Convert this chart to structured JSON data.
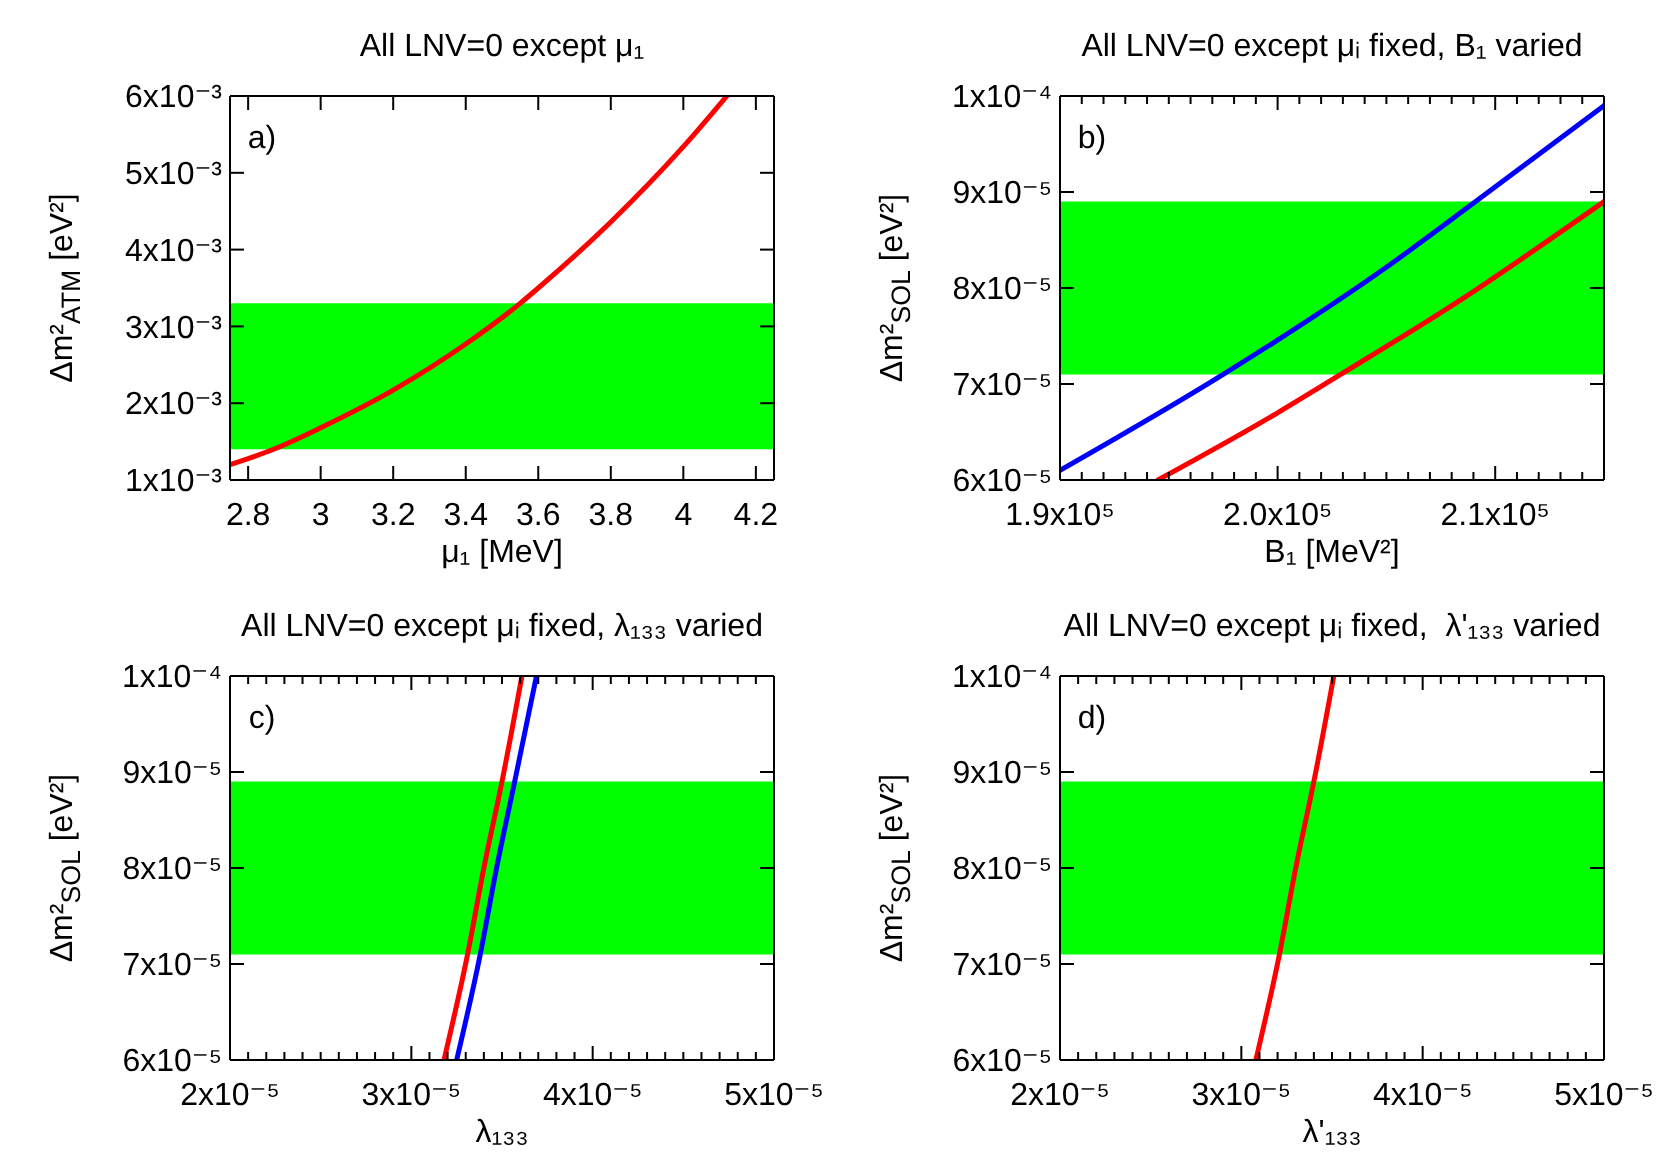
{
  "chart_data": [
    {
      "type": "line",
      "title": "All LNV=0 except μ₁",
      "xlabel": "μ₁ [MeV]",
      "ylabel": "Δm²$_{ATM}$ [eV²]",
      "annotations": [
        "a)"
      ],
      "series": [
        {
          "color": "#ff0000",
          "x": [
            2.75,
            2.87,
            3.0,
            3.2,
            3.4,
            3.55,
            3.6,
            3.8,
            4.0,
            4.12
          ],
          "values": [
            0.0012,
            0.0014,
            0.00168,
            0.00217,
            0.00277,
            0.0033,
            0.0035,
            0.00436,
            0.00534,
            0.006
          ]
        }
      ],
      "xlim": [
        2.75,
        4.25
      ],
      "xticks": [
        2.8,
        3,
        3.2,
        3.4,
        3.6,
        3.8,
        4,
        4.2
      ],
      "ylim": [
        0.001,
        0.006
      ],
      "yticks": [
        {
          "value": 0.001,
          "label": "1x10⁻³"
        },
        {
          "value": 0.002,
          "label": "2x10⁻³"
        },
        {
          "value": 0.003,
          "label": "3x10⁻³"
        },
        {
          "value": 0.004,
          "label": "4x10⁻³"
        },
        {
          "value": 0.005,
          "label": "5x10⁻³"
        },
        {
          "value": 0.006,
          "label": "6x10⁻³"
        }
      ],
      "bands": [
        {
          "axis": "y",
          "from": 0.0014,
          "to": 0.0033,
          "color": "#00ff00"
        }
      ]
    },
    {
      "type": "line",
      "title": "All LNV=0 except μᵢ fixed, B₁ varied",
      "xlabel": "B₁ [MeV²]",
      "ylabel": "Δm²$_{SOL}$ [eV²]",
      "annotations": [
        "b)"
      ],
      "series": [
        {
          "color": "#0000ff",
          "x": [
            190000,
            197500,
            204900,
            209100,
            215000
          ],
          "values": [
            6.1e-05,
            7.1e-05,
            8.2e-05,
            8.9e-05,
            9.9e-05
          ]
        },
        {
          "color": "#ff0000",
          "x": [
            194500,
            200000,
            202900,
            207900,
            215000
          ],
          "values": [
            6e-05,
            6.7e-05,
            7.1e-05,
            7.8e-05,
            8.9e-05
          ]
        }
      ],
      "xlim": [
        190000,
        215000
      ],
      "xticks": [
        {
          "value": 190000,
          "label": "1.9x10⁵"
        },
        {
          "value": 191000,
          "label": null
        },
        {
          "value": 192000,
          "label": null
        },
        {
          "value": 193000,
          "label": null
        },
        {
          "value": 194000,
          "label": null
        },
        {
          "value": 195000,
          "label": null
        },
        {
          "value": 196000,
          "label": null
        },
        {
          "value": 197000,
          "label": null
        },
        {
          "value": 198000,
          "label": null
        },
        {
          "value": 199000,
          "label": null
        },
        {
          "value": 200000,
          "label": "2.0x10⁵"
        },
        {
          "value": 201000,
          "label": null
        },
        {
          "value": 202000,
          "label": null
        },
        {
          "value": 203000,
          "label": null
        },
        {
          "value": 204000,
          "label": null
        },
        {
          "value": 205000,
          "label": null
        },
        {
          "value": 206000,
          "label": null
        },
        {
          "value": 207000,
          "label": null
        },
        {
          "value": 208000,
          "label": null
        },
        {
          "value": 209000,
          "label": null
        },
        {
          "value": 210000,
          "label": "2.1x10⁵"
        },
        {
          "value": 211000,
          "label": null
        },
        {
          "value": 212000,
          "label": null
        },
        {
          "value": 213000,
          "label": null
        },
        {
          "value": 214000,
          "label": null
        }
      ],
      "ylim": [
        6e-05,
        0.0001
      ],
      "yticks": [
        {
          "value": 6e-05,
          "label": "6x10⁻⁵"
        },
        {
          "value": 7e-05,
          "label": "7x10⁻⁵"
        },
        {
          "value": 8e-05,
          "label": "8x10⁻⁵"
        },
        {
          "value": 9e-05,
          "label": "9x10⁻⁵"
        },
        {
          "value": 0.0001,
          "label": "1x10⁻⁴"
        }
      ],
      "bands": [
        {
          "axis": "y",
          "from": 7.1e-05,
          "to": 8.9e-05,
          "color": "#00ff00"
        }
      ]
    },
    {
      "type": "line",
      "title": "All LNV=0 except μᵢ fixed, λ₁₃₃ varied",
      "xlabel": "λ₁₃₃",
      "ylabel": "Δm²$_{SOL}$ [eV²]",
      "annotations": [
        "c)"
      ],
      "series": [
        {
          "color": "#ff0000",
          "x": [
            3.18e-05,
            3.31e-05,
            3.4e-05,
            3.5e-05,
            3.61e-05
          ],
          "values": [
            6e-05,
            7.1e-05,
            8e-05,
            8.9e-05,
            0.0001
          ]
        },
        {
          "color": "#0000ff",
          "x": [
            3.25e-05,
            3.38e-05,
            3.47e-05,
            3.57e-05,
            3.69e-05
          ],
          "values": [
            6e-05,
            7.1e-05,
            8e-05,
            8.9e-05,
            0.0001
          ]
        }
      ],
      "xlim": [
        2e-05,
        5e-05
      ],
      "xticks": [
        {
          "value": 2e-05,
          "label": "2x10⁻⁵"
        },
        {
          "value": 2.1e-05,
          "label": null
        },
        {
          "value": 2.2e-05,
          "label": null
        },
        {
          "value": 2.3e-05,
          "label": null
        },
        {
          "value": 2.4e-05,
          "label": null
        },
        {
          "value": 2.5e-05,
          "label": null
        },
        {
          "value": 2.6e-05,
          "label": null
        },
        {
          "value": 2.7e-05,
          "label": null
        },
        {
          "value": 2.8e-05,
          "label": null
        },
        {
          "value": 2.9e-05,
          "label": null
        },
        {
          "value": 3e-05,
          "label": "3x10⁻⁵"
        },
        {
          "value": 3.1e-05,
          "label": null
        },
        {
          "value": 3.2e-05,
          "label": null
        },
        {
          "value": 3.3e-05,
          "label": null
        },
        {
          "value": 3.4e-05,
          "label": null
        },
        {
          "value": 3.5e-05,
          "label": null
        },
        {
          "value": 3.6e-05,
          "label": null
        },
        {
          "value": 3.7e-05,
          "label": null
        },
        {
          "value": 3.8e-05,
          "label": null
        },
        {
          "value": 3.9e-05,
          "label": null
        },
        {
          "value": 4e-05,
          "label": "4x10⁻⁵"
        },
        {
          "value": 4.1e-05,
          "label": null
        },
        {
          "value": 4.2e-05,
          "label": null
        },
        {
          "value": 4.3e-05,
          "label": null
        },
        {
          "value": 4.4e-05,
          "label": null
        },
        {
          "value": 4.5e-05,
          "label": null
        },
        {
          "value": 4.6e-05,
          "label": null
        },
        {
          "value": 4.7e-05,
          "label": null
        },
        {
          "value": 4.8e-05,
          "label": null
        },
        {
          "value": 4.9e-05,
          "label": null
        },
        {
          "value": 5e-05,
          "label": "5x10⁻⁵"
        }
      ],
      "ylim": [
        6e-05,
        0.0001
      ],
      "yticks": [
        {
          "value": 6e-05,
          "label": "6x10⁻⁵"
        },
        {
          "value": 7e-05,
          "label": "7x10⁻⁵"
        },
        {
          "value": 8e-05,
          "label": "8x10⁻⁵"
        },
        {
          "value": 9e-05,
          "label": "9x10⁻⁵"
        },
        {
          "value": 0.0001,
          "label": "1x10⁻⁴"
        }
      ],
      "bands": [
        {
          "axis": "y",
          "from": 7.1e-05,
          "to": 8.9e-05,
          "color": "#00ff00"
        }
      ]
    },
    {
      "type": "line",
      "title": "All LNV=0 except μᵢ fixed,  λ'₁₃₃ varied",
      "xlabel": "λ'₁₃₃",
      "ylabel": "Δm²$_{SOL}$ [eV²]",
      "annotations": [
        "d)"
      ],
      "series": [
        {
          "color": "#ff0000",
          "x": [
            3.08e-05,
            3.21e-05,
            3.3e-05,
            3.4e-05,
            3.51e-05
          ],
          "values": [
            6e-05,
            7.1e-05,
            8e-05,
            8.9e-05,
            0.0001
          ]
        }
      ],
      "xlim": [
        2e-05,
        5e-05
      ],
      "xticks": [
        {
          "value": 2e-05,
          "label": "2x10⁻⁵"
        },
        {
          "value": 2.1e-05,
          "label": null
        },
        {
          "value": 2.2e-05,
          "label": null
        },
        {
          "value": 2.3e-05,
          "label": null
        },
        {
          "value": 2.4e-05,
          "label": null
        },
        {
          "value": 2.5e-05,
          "label": null
        },
        {
          "value": 2.6e-05,
          "label": null
        },
        {
          "value": 2.7e-05,
          "label": null
        },
        {
          "value": 2.8e-05,
          "label": null
        },
        {
          "value": 2.9e-05,
          "label": null
        },
        {
          "value": 3e-05,
          "label": "3x10⁻⁵"
        },
        {
          "value": 3.1e-05,
          "label": null
        },
        {
          "value": 3.2e-05,
          "label": null
        },
        {
          "value": 3.3e-05,
          "label": null
        },
        {
          "value": 3.4e-05,
          "label": null
        },
        {
          "value": 3.5e-05,
          "label": null
        },
        {
          "value": 3.6e-05,
          "label": null
        },
        {
          "value": 3.7e-05,
          "label": null
        },
        {
          "value": 3.8e-05,
          "label": null
        },
        {
          "value": 3.9e-05,
          "label": null
        },
        {
          "value": 4e-05,
          "label": "4x10⁻⁵"
        },
        {
          "value": 4.1e-05,
          "label": null
        },
        {
          "value": 4.2e-05,
          "label": null
        },
        {
          "value": 4.3e-05,
          "label": null
        },
        {
          "value": 4.4e-05,
          "label": null
        },
        {
          "value": 4.5e-05,
          "label": null
        },
        {
          "value": 4.6e-05,
          "label": null
        },
        {
          "value": 4.7e-05,
          "label": null
        },
        {
          "value": 4.8e-05,
          "label": null
        },
        {
          "value": 4.9e-05,
          "label": null
        },
        {
          "value": 5e-05,
          "label": "5x10⁻⁵"
        }
      ],
      "ylim": [
        6e-05,
        0.0001
      ],
      "yticks": [
        {
          "value": 6e-05,
          "label": "6x10⁻⁵"
        },
        {
          "value": 7e-05,
          "label": "7x10⁻⁵"
        },
        {
          "value": 8e-05,
          "label": "8x10⁻⁵"
        },
        {
          "value": 9e-05,
          "label": "9x10⁻⁵"
        },
        {
          "value": 0.0001,
          "label": "1x10⁻⁴"
        }
      ],
      "bands": [
        {
          "axis": "y",
          "from": 7.1e-05,
          "to": 8.9e-05,
          "color": "#00ff00"
        }
      ]
    }
  ]
}
